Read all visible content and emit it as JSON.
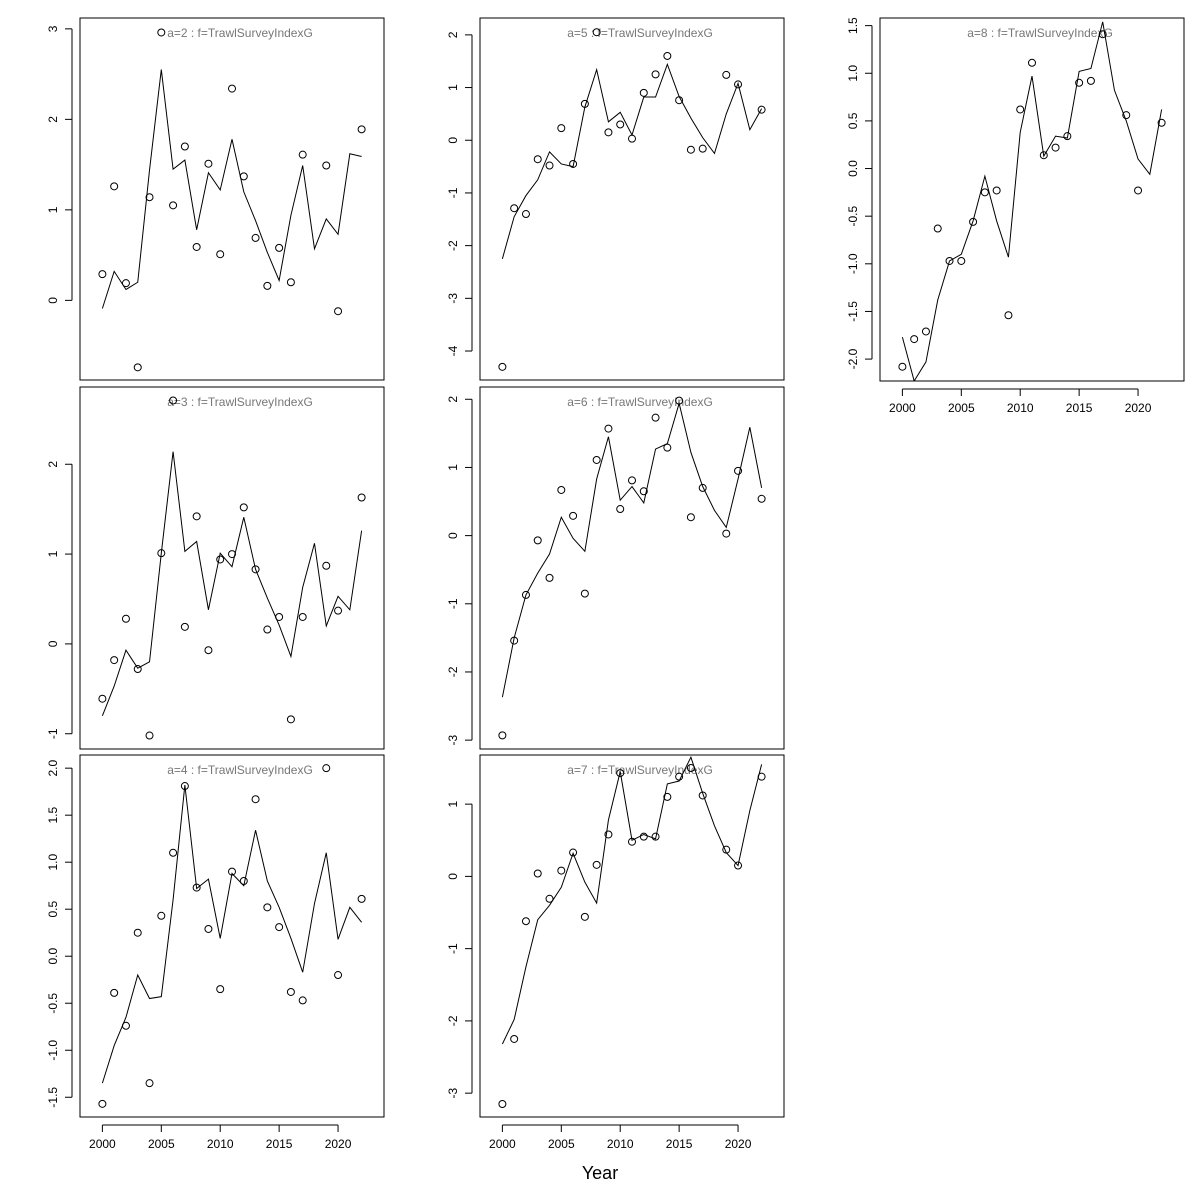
{
  "x_label": "Year",
  "chart_data": [
    {
      "type": "scatter-line",
      "title": "a=2  :  f=TrawlSurveyIndexG",
      "x": [
        2000,
        2001,
        2002,
        2003,
        2004,
        2005,
        2006,
        2007,
        2008,
        2009,
        2010,
        2011,
        2012,
        2013,
        2014,
        2015,
        2016,
        2017,
        2018,
        2019,
        2020,
        2021,
        2022
      ],
      "series": [
        {
          "type": "scatter",
          "color": "#000000",
          "values": [
            0.29,
            1.26,
            0.19,
            -0.74,
            1.14,
            2.96,
            1.05,
            1.7,
            0.59,
            1.51,
            0.51,
            2.34,
            1.37,
            0.69,
            0.16,
            0.58,
            0.2,
            1.61,
            null,
            1.49,
            -0.12,
            null,
            1.89
          ]
        },
        {
          "type": "line",
          "color": "#000000",
          "values": [
            -0.09,
            0.32,
            0.12,
            0.2,
            1.44,
            2.55,
            1.45,
            1.55,
            0.78,
            1.41,
            1.22,
            1.78,
            1.2,
            0.88,
            0.53,
            0.22,
            0.94,
            1.49,
            0.57,
            0.9,
            0.73,
            1.62,
            1.59
          ]
        }
      ],
      "xlim": [
        1998.1,
        2023.9
      ],
      "ylim": [
        -0.88,
        3.12
      ],
      "yticks": [
        0,
        1,
        2,
        3
      ]
    },
    {
      "type": "scatter-line",
      "title": "a=3  :  f=TrawlSurveyIndexG",
      "x": [
        2000,
        2001,
        2002,
        2003,
        2004,
        2005,
        2006,
        2007,
        2008,
        2009,
        2010,
        2011,
        2012,
        2013,
        2014,
        2015,
        2016,
        2017,
        2018,
        2019,
        2020,
        2021,
        2022
      ],
      "series": [
        {
          "type": "scatter",
          "color": "#000000",
          "values": [
            -0.61,
            -0.18,
            0.28,
            -0.28,
            -1.02,
            1.01,
            2.71,
            0.19,
            1.42,
            -0.07,
            0.94,
            1.0,
            1.52,
            0.83,
            0.16,
            0.3,
            -0.84,
            0.3,
            null,
            0.87,
            0.37,
            null,
            1.63
          ]
        },
        {
          "type": "line",
          "color": "#000000",
          "values": [
            -0.8,
            -0.47,
            -0.07,
            -0.27,
            -0.2,
            1.01,
            2.14,
            1.03,
            1.14,
            0.38,
            1.01,
            0.86,
            1.41,
            0.83,
            0.51,
            0.21,
            -0.14,
            0.63,
            1.12,
            0.2,
            0.53,
            0.38,
            1.26
          ]
        }
      ],
      "xlim": [
        1998.1,
        2023.9
      ],
      "ylim": [
        -1.17,
        2.86
      ],
      "yticks": [
        -1,
        0,
        1,
        2
      ]
    },
    {
      "type": "scatter-line",
      "title": "a=4  :  f=TrawlSurveyIndexG",
      "x": [
        2000,
        2001,
        2002,
        2003,
        2004,
        2005,
        2006,
        2007,
        2008,
        2009,
        2010,
        2011,
        2012,
        2013,
        2014,
        2015,
        2016,
        2017,
        2018,
        2019,
        2020,
        2021,
        2022
      ],
      "series": [
        {
          "type": "scatter",
          "color": "#000000",
          "values": [
            -1.57,
            -0.39,
            -0.74,
            0.25,
            -1.35,
            0.43,
            1.1,
            1.81,
            0.73,
            0.29,
            -0.35,
            0.9,
            0.8,
            1.67,
            0.52,
            0.31,
            -0.38,
            -0.47,
            null,
            2.0,
            -0.2,
            null,
            0.61
          ]
        },
        {
          "type": "line",
          "color": "#000000",
          "values": [
            -1.35,
            -0.95,
            -0.65,
            -0.2,
            -0.45,
            -0.43,
            0.6,
            1.82,
            0.72,
            0.82,
            0.19,
            0.88,
            0.75,
            1.34,
            0.8,
            0.52,
            0.19,
            -0.17,
            0.56,
            1.1,
            0.18,
            0.52,
            0.36
          ]
        }
      ],
      "xlim": [
        1998.1,
        2023.9
      ],
      "ylim": [
        -1.71,
        2.14
      ],
      "yticks": [
        -1.5,
        {
          "value": -1,
          "label": "-1.0"
        },
        -0.5,
        {
          "value": 0,
          "label": "0.0"
        },
        0.5,
        {
          "value": 1,
          "label": "1.0"
        },
        1.5,
        {
          "value": 2,
          "label": "2.0"
        }
      ],
      "xticks": [
        2000,
        2005,
        2010,
        2015,
        2020
      ]
    },
    {
      "type": "scatter-line",
      "title": "a=5  :  f=TrawlSurveyIndexG",
      "x": [
        2000,
        2001,
        2002,
        2003,
        2004,
        2005,
        2006,
        2007,
        2008,
        2009,
        2010,
        2011,
        2012,
        2013,
        2014,
        2015,
        2016,
        2017,
        2018,
        2019,
        2020,
        2021,
        2022
      ],
      "series": [
        {
          "type": "scatter",
          "color": "#000000",
          "values": [
            -4.3,
            -1.29,
            -1.4,
            -0.36,
            -0.48,
            0.23,
            -0.45,
            0.69,
            2.05,
            0.15,
            0.3,
            0.03,
            0.9,
            1.25,
            1.6,
            0.76,
            -0.18,
            -0.16,
            null,
            1.24,
            1.06,
            null,
            0.58
          ]
        },
        {
          "type": "line",
          "color": "#000000",
          "values": [
            -2.25,
            -1.45,
            -1.05,
            -0.75,
            -0.22,
            -0.45,
            -0.5,
            0.63,
            1.34,
            0.35,
            0.53,
            0.1,
            0.82,
            0.82,
            1.44,
            0.83,
            0.42,
            0.05,
            -0.25,
            0.5,
            1.08,
            0.2,
            0.6
          ]
        }
      ],
      "xlim": [
        1998.1,
        2023.9
      ],
      "ylim": [
        -4.55,
        2.32
      ],
      "yticks": [
        -4,
        -3,
        -2,
        -1,
        0,
        1,
        2
      ]
    },
    {
      "type": "scatter-line",
      "title": "a=6  :  f=TrawlSurveyIndexG",
      "x": [
        2000,
        2001,
        2002,
        2003,
        2004,
        2005,
        2006,
        2007,
        2008,
        2009,
        2010,
        2011,
        2012,
        2013,
        2014,
        2015,
        2016,
        2017,
        2018,
        2019,
        2020,
        2021,
        2022
      ],
      "series": [
        {
          "type": "scatter",
          "color": "#000000",
          "values": [
            -2.93,
            -1.54,
            -0.87,
            -0.07,
            -0.62,
            0.67,
            0.29,
            -0.85,
            1.11,
            1.57,
            0.39,
            0.81,
            0.65,
            1.73,
            1.29,
            1.98,
            0.27,
            0.7,
            null,
            0.03,
            0.95,
            null,
            0.54
          ]
        },
        {
          "type": "line",
          "color": "#000000",
          "values": [
            -2.37,
            -1.5,
            -0.87,
            -0.55,
            -0.27,
            0.27,
            -0.04,
            -0.23,
            0.83,
            1.45,
            0.52,
            0.72,
            0.48,
            1.27,
            1.35,
            1.94,
            1.22,
            0.72,
            0.37,
            0.12,
            0.83,
            1.59,
            0.7
          ]
        }
      ],
      "xlim": [
        1998.1,
        2023.9
      ],
      "ylim": [
        -3.13,
        2.18
      ],
      "yticks": [
        -3,
        -2,
        -1,
        0,
        1,
        2
      ]
    },
    {
      "type": "scatter-line",
      "title": "a=7  :  f=TrawlSurveyIndexG",
      "x": [
        2000,
        2001,
        2002,
        2003,
        2004,
        2005,
        2006,
        2007,
        2008,
        2009,
        2010,
        2011,
        2012,
        2013,
        2014,
        2015,
        2016,
        2017,
        2018,
        2019,
        2020,
        2021,
        2022
      ],
      "series": [
        {
          "type": "scatter",
          "color": "#000000",
          "values": [
            -3.15,
            -2.25,
            -0.62,
            0.04,
            -0.31,
            0.08,
            0.33,
            -0.56,
            0.16,
            0.58,
            1.43,
            0.48,
            0.55,
            0.55,
            1.1,
            1.38,
            1.5,
            1.12,
            null,
            0.37,
            0.15,
            null,
            1.38
          ]
        },
        {
          "type": "line",
          "color": "#000000",
          "values": [
            -2.32,
            -1.98,
            -1.25,
            -0.6,
            -0.4,
            -0.15,
            0.32,
            -0.08,
            -0.37,
            0.78,
            1.45,
            0.5,
            0.58,
            0.52,
            1.28,
            1.32,
            1.65,
            1.15,
            0.7,
            0.33,
            0.15,
            0.91,
            1.55
          ]
        }
      ],
      "xlim": [
        1998.1,
        2023.9
      ],
      "ylim": [
        -3.33,
        1.68
      ],
      "yticks": [
        -3,
        -2,
        -1,
        0,
        1
      ],
      "xticks": [
        2000,
        2005,
        2010,
        2015,
        2020
      ]
    },
    {
      "type": "scatter-line",
      "title": "a=8  :  f=TrawlSurveyIndexG",
      "x": [
        2000,
        2001,
        2002,
        2003,
        2004,
        2005,
        2006,
        2007,
        2008,
        2009,
        2010,
        2011,
        2012,
        2013,
        2014,
        2015,
        2016,
        2017,
        2018,
        2019,
        2020,
        2021,
        2022
      ],
      "series": [
        {
          "type": "scatter",
          "color": "#000000",
          "values": [
            -2.08,
            -1.79,
            -1.71,
            -0.63,
            -0.97,
            -0.97,
            -0.56,
            -0.25,
            -0.23,
            -1.54,
            0.62,
            1.11,
            0.14,
            0.22,
            0.34,
            0.9,
            0.92,
            1.41,
            null,
            0.56,
            -0.23,
            null,
            0.48
          ]
        },
        {
          "type": "line",
          "color": "#000000",
          "values": [
            -1.77,
            -2.23,
            -2.03,
            -1.38,
            -0.97,
            -0.9,
            -0.55,
            -0.08,
            -0.55,
            -0.93,
            0.38,
            0.97,
            0.13,
            0.34,
            0.32,
            1.02,
            1.05,
            1.54,
            0.82,
            0.5,
            0.1,
            -0.06,
            0.62
          ]
        }
      ],
      "xlim": [
        1998.1,
        2023.9
      ],
      "ylim": [
        -2.23,
        1.58
      ],
      "yticks": [
        {
          "value": -2,
          "label": "-2.0"
        },
        -1.5,
        {
          "value": -1,
          "label": "-1.0"
        },
        -0.5,
        {
          "value": 0,
          "label": "0.0"
        },
        0.5,
        {
          "value": 1,
          "label": "1.0"
        },
        1.5
      ],
      "xticks": [
        2000,
        2005,
        2010,
        2015,
        2020
      ]
    }
  ]
}
